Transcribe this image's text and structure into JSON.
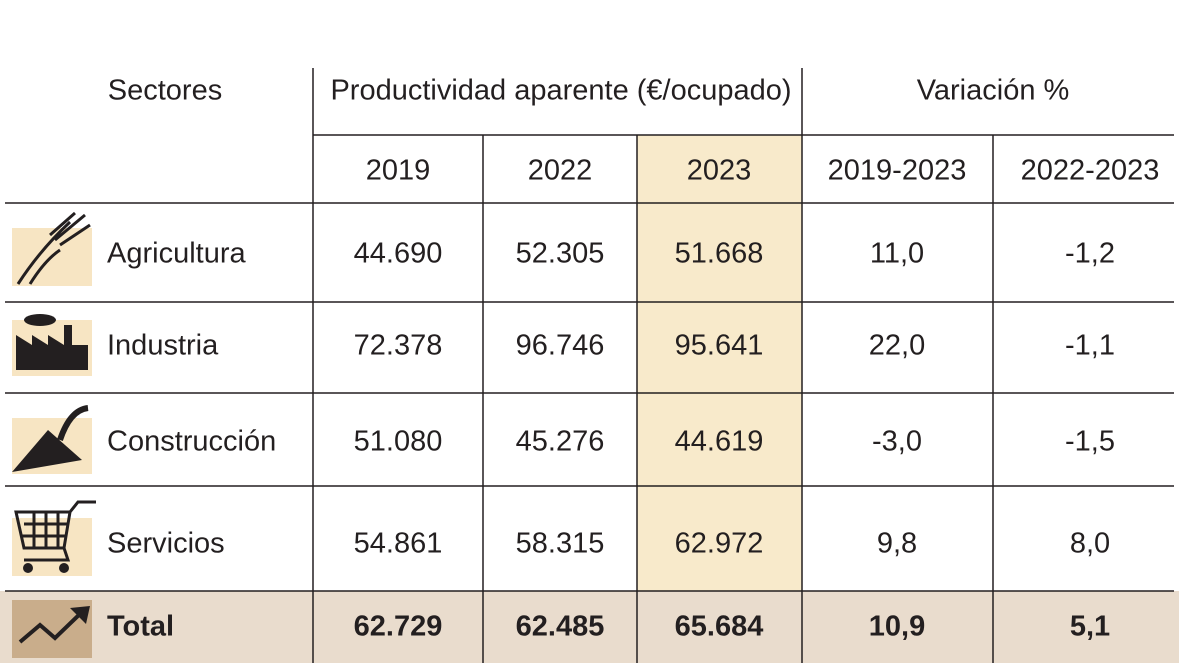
{
  "header": {
    "sector": "Sectores",
    "productivity": "Productividad aparente (€/ocupado)",
    "variation": "Variación %",
    "years": [
      "2019",
      "2022",
      "2023",
      "2019-2023",
      "2022-2023"
    ]
  },
  "table": {
    "rows": [
      [
        "Agricultura",
        "44.690",
        "52.305",
        "51.668",
        "11,0",
        "-1,2"
      ],
      [
        "Industria",
        "72.378",
        "96.746",
        "95.641",
        "22,0",
        "-1,1"
      ],
      [
        "Construcción",
        "51.080",
        "45.276",
        "44.619",
        "-3,0",
        "-1,5"
      ],
      [
        "Servicios",
        "54.861",
        "58.315",
        "62.972",
        "9,8",
        "8,0"
      ]
    ],
    "total": [
      "Total",
      "62.729",
      "62.485",
      "65.684",
      "10,9",
      "5,1"
    ]
  }
}
